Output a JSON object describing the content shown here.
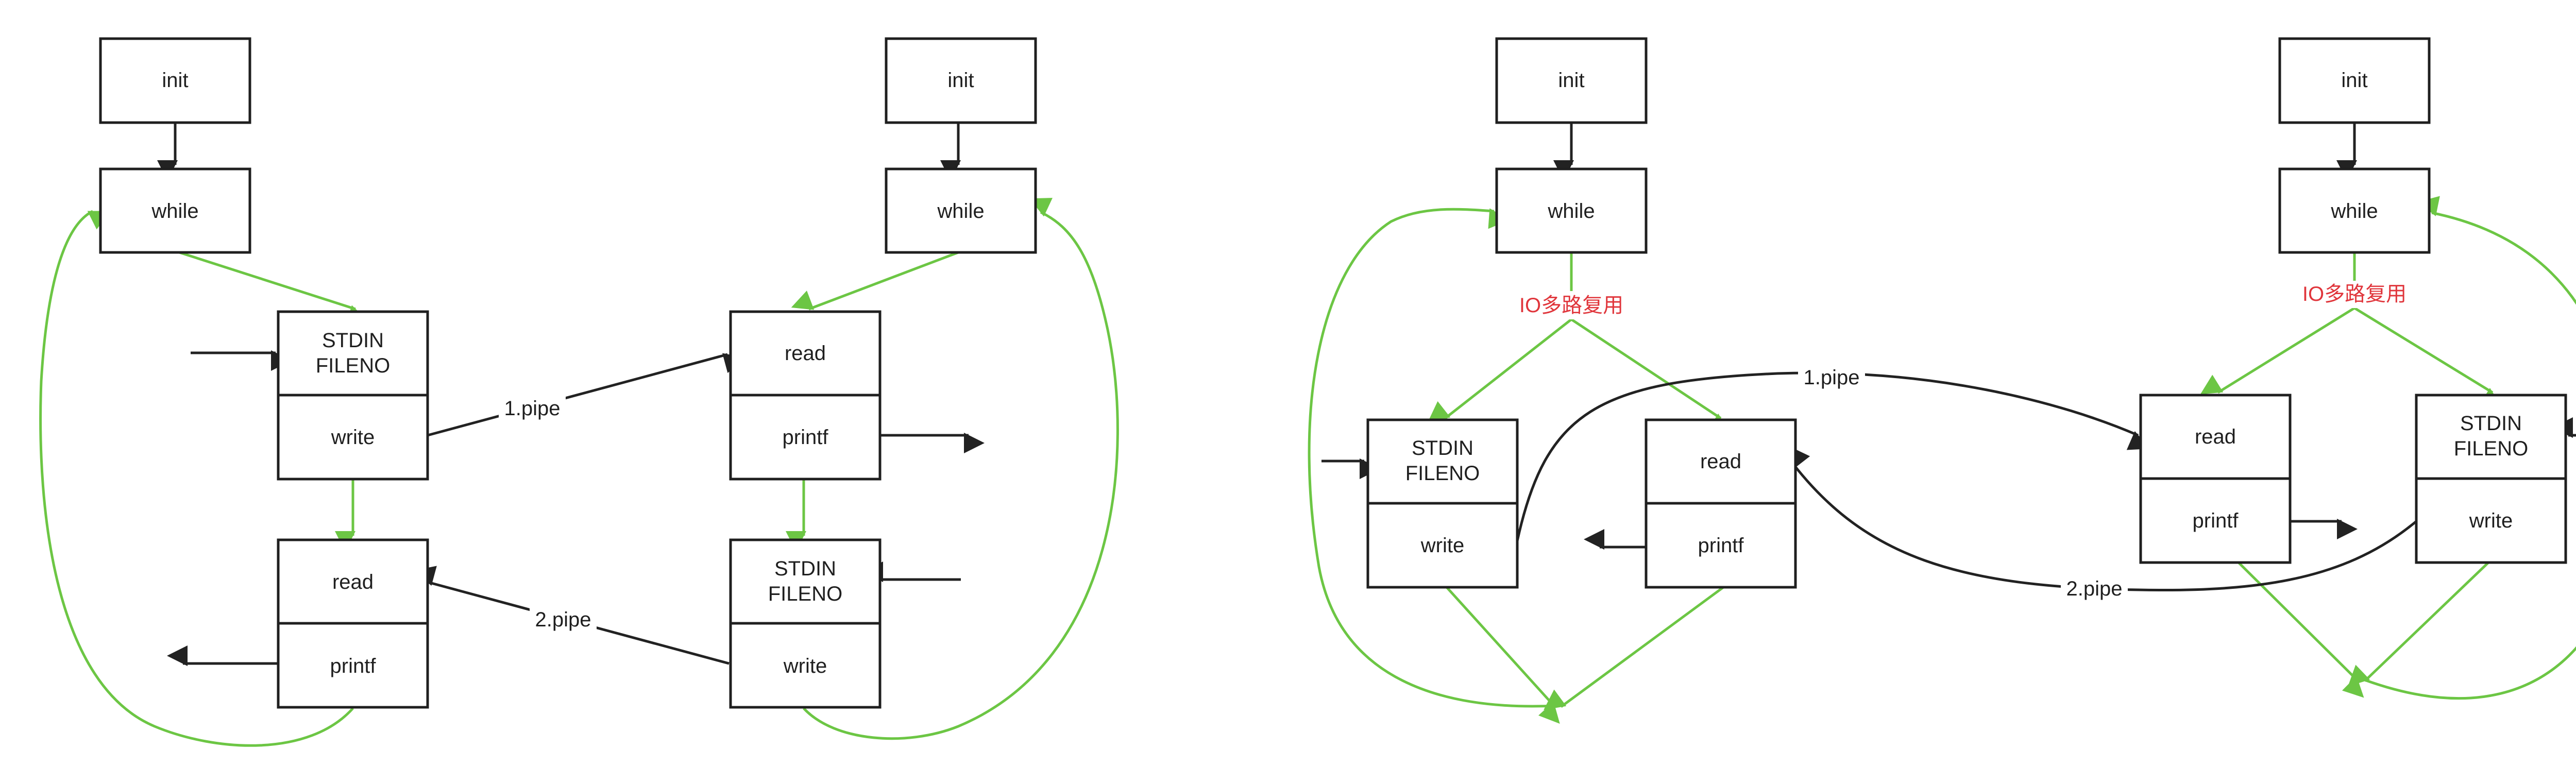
{
  "diagrams": [
    {
      "name": "diagram-left",
      "process_a": {
        "init": "init",
        "while": "while",
        "stdin_line1": "STDIN",
        "stdin_line2": "FILENO",
        "write": "write",
        "read": "read",
        "printf": "printf"
      },
      "process_b": {
        "init": "init",
        "while": "while",
        "read": "read",
        "printf": "printf",
        "stdin_line1": "STDIN",
        "stdin_line2": "FILENO",
        "write": "write"
      },
      "pipe1_label": "1.pipe",
      "pipe2_label": "2.pipe"
    },
    {
      "name": "diagram-right",
      "process_a": {
        "init": "init",
        "while": "while",
        "mux_label": "IO多路复用",
        "stdin_line1": "STDIN",
        "stdin_line2": "FILENO",
        "write": "write",
        "read": "read",
        "printf": "printf"
      },
      "process_b": {
        "init": "init",
        "while": "while",
        "mux_label": "IO多路复用",
        "read": "read",
        "printf": "printf",
        "stdin_line1": "STDIN",
        "stdin_line2": "FILENO",
        "write": "write"
      },
      "pipe1_label": "1.pipe",
      "pipe2_label": "2.pipe"
    }
  ],
  "colors": {
    "box_stroke": "#1f1f1f",
    "data_arrow": "#222222",
    "control_arrow": "#6cc644",
    "mux_label": "#e0353b"
  }
}
